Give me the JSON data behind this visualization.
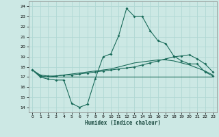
{
  "xlabel": "Humidex (Indice chaleur)",
  "background_color": "#cce8e4",
  "grid_color": "#b0d8d4",
  "line_color": "#1a6b5a",
  "xlim": [
    -0.5,
    23.5
  ],
  "ylim": [
    13.5,
    24.5
  ],
  "xticks": [
    0,
    1,
    2,
    3,
    4,
    5,
    6,
    7,
    8,
    9,
    10,
    11,
    12,
    13,
    14,
    15,
    16,
    17,
    18,
    19,
    20,
    21,
    22,
    23
  ],
  "yticks": [
    14,
    15,
    16,
    17,
    18,
    19,
    20,
    21,
    22,
    23,
    24
  ],
  "line1_x": [
    0,
    1,
    2,
    3,
    4,
    5,
    6,
    7,
    8,
    9,
    10,
    11,
    12,
    13,
    14,
    15,
    16,
    17,
    18,
    19,
    20,
    21,
    22,
    23
  ],
  "line1_y": [
    17.7,
    17.0,
    16.8,
    16.7,
    16.7,
    14.4,
    14.0,
    14.3,
    16.8,
    19.0,
    19.3,
    21.1,
    23.8,
    23.0,
    23.0,
    21.6,
    20.6,
    20.3,
    19.1,
    18.6,
    18.3,
    18.3,
    17.5,
    17.1
  ],
  "line2_x": [
    0,
    1,
    2,
    3,
    4,
    5,
    6,
    7,
    8,
    9,
    10,
    11,
    12,
    13,
    14,
    15,
    16,
    17,
    18,
    19,
    20,
    21,
    22,
    23
  ],
  "line2_y": [
    17.7,
    17.2,
    17.1,
    17.1,
    17.2,
    17.2,
    17.3,
    17.4,
    17.5,
    17.6,
    17.7,
    17.8,
    17.9,
    18.0,
    18.2,
    18.4,
    18.6,
    18.8,
    19.0,
    19.1,
    19.2,
    18.8,
    18.3,
    17.5
  ],
  "line3_x": [
    0,
    1,
    2,
    3,
    4,
    5,
    6,
    7,
    8,
    9,
    10,
    11,
    12,
    13,
    14,
    15,
    16,
    17,
    18,
    19,
    20,
    21,
    22,
    23
  ],
  "line3_y": [
    17.7,
    17.1,
    17.0,
    17.0,
    17.0,
    17.0,
    17.0,
    17.0,
    17.0,
    17.0,
    17.0,
    17.0,
    17.0,
    17.0,
    17.0,
    17.0,
    17.0,
    17.0,
    17.0,
    17.0,
    17.0,
    17.0,
    17.0,
    17.0
  ],
  "line4_x": [
    0,
    1,
    2,
    3,
    4,
    5,
    6,
    7,
    8,
    9,
    10,
    11,
    12,
    13,
    14,
    15,
    16,
    17,
    18,
    19,
    20,
    21,
    22,
    23
  ],
  "line4_y": [
    17.7,
    17.1,
    17.0,
    17.1,
    17.2,
    17.3,
    17.4,
    17.5,
    17.6,
    17.7,
    17.8,
    18.0,
    18.2,
    18.4,
    18.5,
    18.6,
    18.7,
    18.7,
    18.6,
    18.4,
    18.2,
    17.9,
    17.6,
    17.2
  ]
}
